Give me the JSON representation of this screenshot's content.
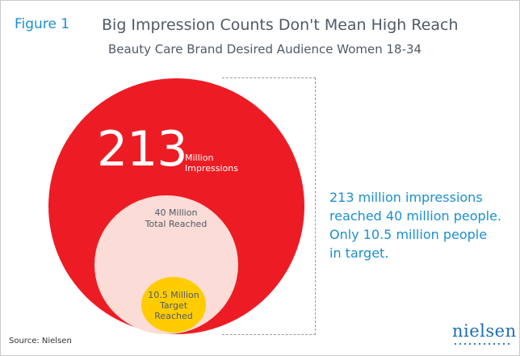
{
  "header": {
    "figure_label": "Figure 1",
    "title": "Big Impression Counts Don't Mean High Reach",
    "subtitle": "Beauty Care Brand Desired Audience Women 18-34"
  },
  "diagram": {
    "impressions": {
      "value": "213",
      "unit_line1": "Million",
      "unit_line2": "Impressions"
    },
    "reached": {
      "line1": "40 Million",
      "line2": "Total Reached"
    },
    "target": {
      "line1": "10.5 Million",
      "line2": "Target",
      "line3": "Reached"
    }
  },
  "callout": {
    "lines": [
      "213 million impressions",
      "reached 40 million people.",
      "Only 10.5 million people",
      "in target."
    ]
  },
  "footer": {
    "source": "Source: Nielsen",
    "logo": "nielsen"
  },
  "colors": {
    "accent_blue": "#1b8fd0",
    "impressions_red": "#ed1c24",
    "reached_pink": "#fbdcd6",
    "target_yellow": "#ffcc00",
    "title_gray": "#505a66"
  }
}
